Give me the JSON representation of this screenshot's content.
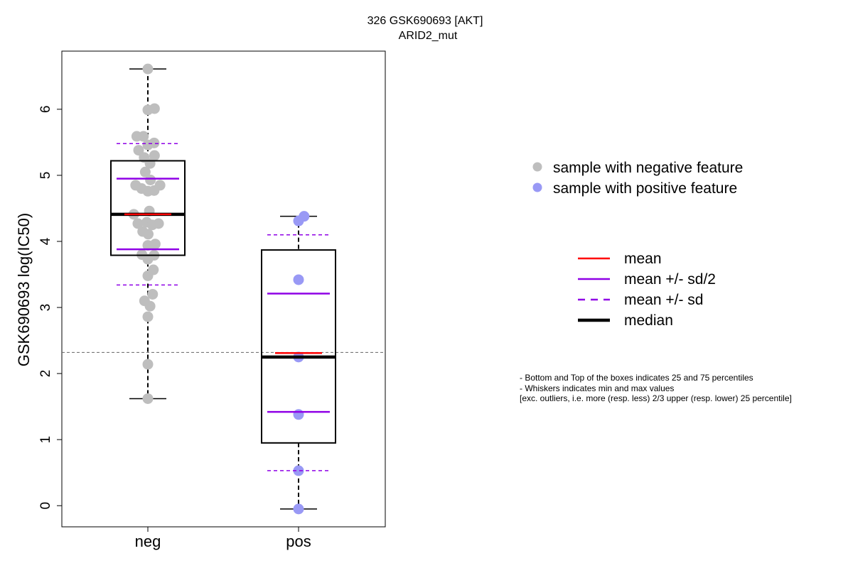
{
  "chart_data": {
    "type": "box",
    "title": "326 GSK690693 [AKT]",
    "subtitle": "ARID2_mut",
    "ylabel": "GSK690693 log(IC50)",
    "xlabel": "",
    "ylim": [
      -0.32,
      6.88
    ],
    "yticks": [
      0,
      1,
      2,
      3,
      4,
      5,
      6
    ],
    "categories": [
      "neg",
      "pos"
    ],
    "reference_line_y": 2.32,
    "colors": {
      "neg_point": "#bebebe",
      "pos_point": "#9999f5",
      "mean": "#ff0000",
      "sd": "#8f00e6",
      "median": "#000000"
    },
    "groups": [
      {
        "name": "neg",
        "whisker_low": 1.62,
        "q1": 3.79,
        "median": 4.41,
        "q3": 5.22,
        "whisker_high": 6.61,
        "mean": 4.41,
        "mean_minus_half_sd": 3.88,
        "mean_plus_half_sd": 4.95,
        "mean_minus_sd": 3.34,
        "mean_plus_sd": 5.48,
        "points": [
          [
            0.0,
            6.61
          ],
          [
            0.0,
            5.99
          ],
          [
            0.18,
            6.01
          ],
          [
            -0.3,
            5.59
          ],
          [
            -0.12,
            5.59
          ],
          [
            0.17,
            5.49
          ],
          [
            0.0,
            5.46
          ],
          [
            -0.25,
            5.38
          ],
          [
            -0.1,
            5.27
          ],
          [
            0.18,
            5.3
          ],
          [
            0.06,
            5.18
          ],
          [
            -0.07,
            5.05
          ],
          [
            0.07,
            4.93
          ],
          [
            -0.33,
            4.85
          ],
          [
            -0.17,
            4.8
          ],
          [
            0.0,
            4.76
          ],
          [
            0.17,
            4.77
          ],
          [
            0.33,
            4.85
          ],
          [
            0.04,
            4.46
          ],
          [
            -0.38,
            4.41
          ],
          [
            -0.27,
            4.27
          ],
          [
            -0.03,
            4.29
          ],
          [
            0.12,
            4.25
          ],
          [
            0.29,
            4.27
          ],
          [
            -0.14,
            4.15
          ],
          [
            0.01,
            4.11
          ],
          [
            0.0,
            3.94
          ],
          [
            0.2,
            3.96
          ],
          [
            -0.16,
            3.8
          ],
          [
            0.0,
            3.73
          ],
          [
            0.17,
            3.79
          ],
          [
            0.15,
            3.57
          ],
          [
            0.0,
            3.48
          ],
          [
            0.13,
            3.2
          ],
          [
            -0.09,
            3.1
          ],
          [
            0.06,
            3.02
          ],
          [
            0.0,
            2.86
          ],
          [
            0.0,
            2.14
          ],
          [
            0.0,
            1.62
          ]
        ]
      },
      {
        "name": "pos",
        "whisker_low": -0.05,
        "q1": 0.95,
        "median": 2.25,
        "q3": 3.87,
        "whisker_high": 4.38,
        "mean": 2.31,
        "mean_minus_half_sd": 1.42,
        "mean_plus_half_sd": 3.21,
        "mean_minus_sd": 0.53,
        "mean_plus_sd": 4.1,
        "points": [
          [
            0.15,
            4.38
          ],
          [
            0.0,
            4.31
          ],
          [
            0.0,
            3.42
          ],
          [
            0.0,
            2.25
          ],
          [
            0.0,
            1.38
          ],
          [
            0.0,
            0.53
          ],
          [
            0.0,
            -0.05
          ]
        ]
      }
    ],
    "legend_points": [
      {
        "label": "sample with negative feature",
        "color": "#bebebe"
      },
      {
        "label": "sample with positive feature",
        "color": "#9999f5"
      }
    ],
    "legend_lines": [
      {
        "label": "mean",
        "color": "#ff0000",
        "style": "solid",
        "weight": "normal"
      },
      {
        "label": "mean +/- sd/2",
        "color": "#8f00e6",
        "style": "solid",
        "weight": "normal"
      },
      {
        "label": "mean +/- sd",
        "color": "#8f00e6",
        "style": "dashed",
        "weight": "normal"
      },
      {
        "label": "median",
        "color": "#000000",
        "style": "solid",
        "weight": "bold"
      }
    ],
    "notes": [
      "- Bottom and Top of the boxes indicates 25 and 75 percentiles",
      "- Whiskers indicates min and max values",
      "[exc. outliers, i.e. more (resp. less) 2/3 upper (resp. lower) 25 percentile]"
    ]
  }
}
